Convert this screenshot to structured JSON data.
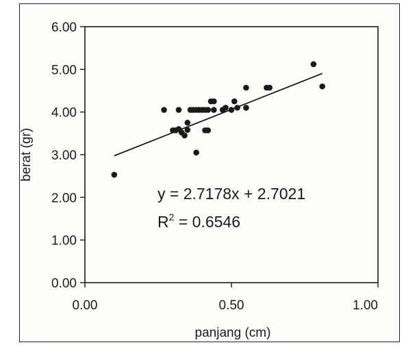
{
  "chart_data": {
    "type": "scatter",
    "xlabel": "panjang (cm)",
    "ylabel": "berat (gr)",
    "xlim": [
      0,
      1
    ],
    "ylim": [
      0,
      6
    ],
    "x_ticks": [
      "0.00",
      "0.50",
      "1.00"
    ],
    "y_ticks": [
      "0.00",
      "1.00",
      "2.00",
      "3.00",
      "4.00",
      "5.00",
      "6.00"
    ],
    "points": [
      {
        "x": 0.1,
        "y": 2.53
      },
      {
        "x": 0.27,
        "y": 4.05
      },
      {
        "x": 0.3,
        "y": 3.57
      },
      {
        "x": 0.31,
        "y": 3.57
      },
      {
        "x": 0.32,
        "y": 4.05
      },
      {
        "x": 0.32,
        "y": 3.6
      },
      {
        "x": 0.33,
        "y": 3.52
      },
      {
        "x": 0.34,
        "y": 3.45
      },
      {
        "x": 0.35,
        "y": 3.75
      },
      {
        "x": 0.35,
        "y": 3.58
      },
      {
        "x": 0.36,
        "y": 4.05
      },
      {
        "x": 0.37,
        "y": 4.05
      },
      {
        "x": 0.38,
        "y": 4.05
      },
      {
        "x": 0.38,
        "y": 3.05
      },
      {
        "x": 0.39,
        "y": 4.05
      },
      {
        "x": 0.4,
        "y": 4.05
      },
      {
        "x": 0.41,
        "y": 4.05
      },
      {
        "x": 0.41,
        "y": 3.57
      },
      {
        "x": 0.42,
        "y": 3.57
      },
      {
        "x": 0.42,
        "y": 4.05
      },
      {
        "x": 0.43,
        "y": 4.25
      },
      {
        "x": 0.44,
        "y": 4.25
      },
      {
        "x": 0.44,
        "y": 4.05
      },
      {
        "x": 0.47,
        "y": 4.05
      },
      {
        "x": 0.48,
        "y": 4.1
      },
      {
        "x": 0.5,
        "y": 4.05
      },
      {
        "x": 0.51,
        "y": 4.25
      },
      {
        "x": 0.52,
        "y": 4.1
      },
      {
        "x": 0.55,
        "y": 4.57
      },
      {
        "x": 0.55,
        "y": 4.1
      },
      {
        "x": 0.62,
        "y": 4.57
      },
      {
        "x": 0.63,
        "y": 4.57
      },
      {
        "x": 0.78,
        "y": 5.12
      },
      {
        "x": 0.81,
        "y": 4.6
      }
    ],
    "trendline": {
      "slope": 2.7178,
      "intercept": 2.7021,
      "x_range": [
        0.1,
        0.81
      ]
    },
    "equation": "y = 2.7178x + 2.7021",
    "r2_prefix": "R",
    "r2_sup": "2",
    "r2_value": " = 0.6546",
    "grid": false,
    "legend": "none"
  }
}
